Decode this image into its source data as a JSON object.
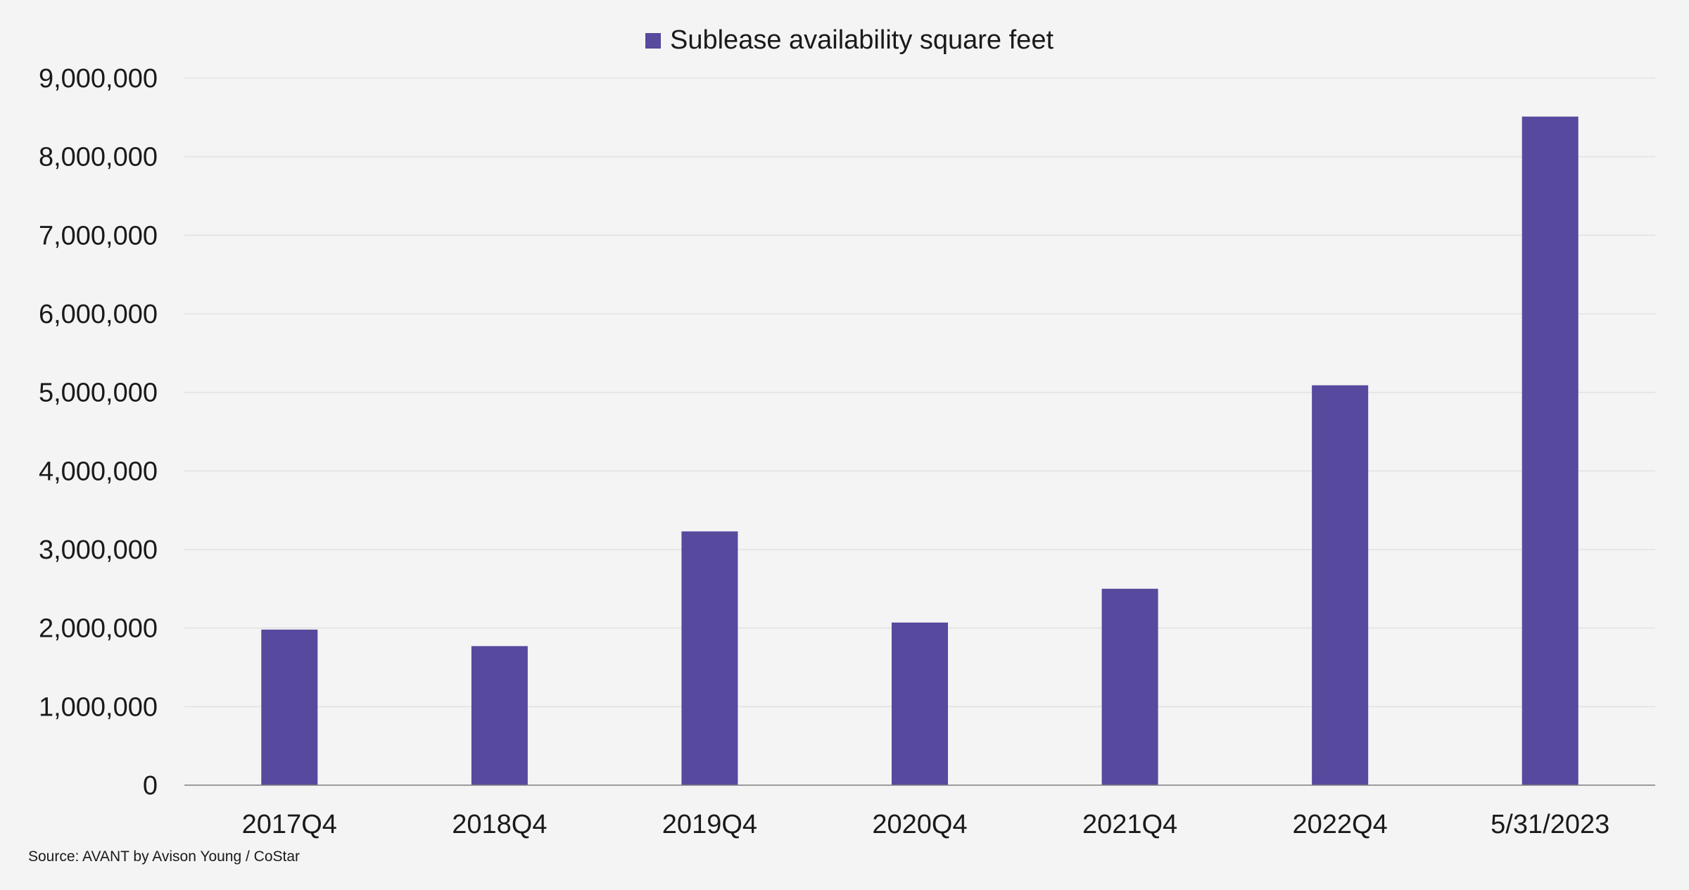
{
  "chart_data": {
    "type": "bar",
    "categories": [
      "2017Q4",
      "2018Q4",
      "2019Q4",
      "2020Q4",
      "2021Q4",
      "2022Q4",
      "5/31/2023"
    ],
    "series": [
      {
        "name": "Sublease availability square feet",
        "color": "#56499e",
        "values": [
          1980000,
          1770000,
          3230000,
          2070000,
          2500000,
          5090000,
          8510000
        ]
      }
    ],
    "y_ticks": [
      "0",
      "1,000,000",
      "2,000,000",
      "3,000,000",
      "4,000,000",
      "5,000,000",
      "6,000,000",
      "7,000,000",
      "8,000,000",
      "9,000,000"
    ],
    "ylim": [
      0,
      9000000
    ],
    "y_tick_step": 1000000,
    "grid": true,
    "legend_position": "top-center",
    "title": "",
    "xlabel": "",
    "ylabel": ""
  },
  "source_note": "Source: AVANT by Avison Young / CoStar",
  "colors": {
    "background": "#f4f4f4",
    "bar": "#56499e",
    "gridline": "#e1e1e1",
    "axis_line": "#7f7f7f",
    "text": "#1a1a1a"
  }
}
